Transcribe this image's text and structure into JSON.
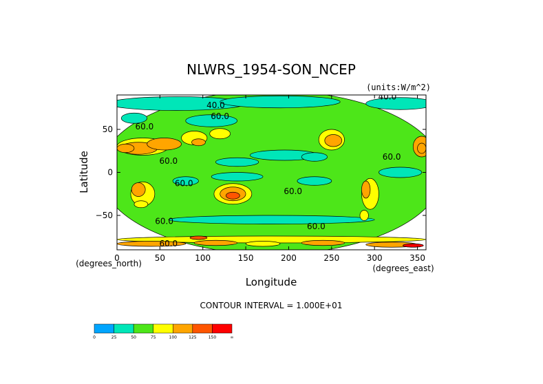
{
  "chart_data": {
    "type": "heatmap",
    "title": "NLWRS_1954-SON_NCEP",
    "units_label": "(units:W/m^2)",
    "xlabel": "Longitude",
    "ylabel": "Latitude",
    "x_unit_label": "(degrees_east)",
    "y_unit_label": "(degrees_north)",
    "xlim": [
      0,
      360
    ],
    "ylim": [
      -90,
      90
    ],
    "x_ticks": [
      "0",
      "50",
      "100",
      "150",
      "200",
      "250",
      "300",
      "350"
    ],
    "x_tick_values": [
      0,
      50,
      100,
      150,
      200,
      250,
      300,
      350
    ],
    "y_ticks": [
      "50",
      "0",
      "−50"
    ],
    "y_tick_values": [
      50,
      0,
      -50
    ],
    "contour_interval_text": "CONTOUR INTERVAL = 1.000E+01",
    "contour_labels": [
      {
        "text": "40.0",
        "lon": 115,
        "lat": 75
      },
      {
        "text": "60.0",
        "lon": 120,
        "lat": 62
      },
      {
        "text": "60.0",
        "lon": 32,
        "lat": 50
      },
      {
        "text": "60.0",
        "lon": 60,
        "lat": 10
      },
      {
        "text": "60.0",
        "lon": 78,
        "lat": -16
      },
      {
        "text": "60.0",
        "lon": 205,
        "lat": -25
      },
      {
        "text": "60.0",
        "lon": 320,
        "lat": 15
      },
      {
        "text": "60.0",
        "lon": 55,
        "lat": -60
      },
      {
        "text": "60.0",
        "lon": 232,
        "lat": -66
      },
      {
        "text": "60.0",
        "lon": 60,
        "lat": -86
      },
      {
        "text": "40.0",
        "lon": 315,
        "lat": 85
      }
    ],
    "colorbar": {
      "ticks": [
        "0",
        "25",
        "50",
        "75",
        "100",
        "125",
        "150",
        "∞"
      ],
      "colors": [
        "#00a5ff",
        "#00e6b8",
        "#4de619",
        "#ffff00",
        "#ffa500",
        "#ff5500",
        "#ff0000"
      ]
    },
    "regions": [
      {
        "lon": 180,
        "lat": 0,
        "rx": 200,
        "ry": 95,
        "value": 60
      },
      {
        "lon": 70,
        "lat": 80,
        "rx": 80,
        "ry": 8,
        "value": 45
      },
      {
        "lon": 190,
        "lat": 82,
        "rx": 70,
        "ry": 7,
        "value": 45
      },
      {
        "lon": 330,
        "lat": 80,
        "rx": 40,
        "ry": 7,
        "value": 40
      },
      {
        "lon": 110,
        "lat": 60,
        "rx": 30,
        "ry": 7,
        "value": 40
      },
      {
        "lon": 20,
        "lat": 63,
        "rx": 15,
        "ry": 6,
        "value": 45
      },
      {
        "lon": 195,
        "lat": 20,
        "rx": 40,
        "ry": 6,
        "value": 40
      },
      {
        "lon": 140,
        "lat": 12,
        "rx": 25,
        "ry": 5,
        "value": 45
      },
      {
        "lon": 230,
        "lat": 18,
        "rx": 15,
        "ry": 5,
        "value": 45
      },
      {
        "lon": 330,
        "lat": 0,
        "rx": 25,
        "ry": 6,
        "value": 40
      },
      {
        "lon": 80,
        "lat": -10,
        "rx": 15,
        "ry": 5,
        "value": 45
      },
      {
        "lon": 140,
        "lat": -5,
        "rx": 30,
        "ry": 5,
        "value": 45
      },
      {
        "lon": 230,
        "lat": -10,
        "rx": 20,
        "ry": 5,
        "value": 45
      },
      {
        "lon": 180,
        "lat": -55,
        "rx": 120,
        "ry": 5,
        "value": 45
      },
      {
        "lon": 180,
        "lat": -78,
        "rx": 180,
        "ry": 4,
        "value": 80
      },
      {
        "lon": 40,
        "lat": -83,
        "rx": 40,
        "ry": 3,
        "value": 110
      },
      {
        "lon": 115,
        "lat": -82,
        "rx": 25,
        "ry": 3,
        "value": 105
      },
      {
        "lon": 170,
        "lat": -83,
        "rx": 20,
        "ry": 3,
        "value": 85
      },
      {
        "lon": 240,
        "lat": -82,
        "rx": 25,
        "ry": 3,
        "value": 110
      },
      {
        "lon": 320,
        "lat": -84,
        "rx": 30,
        "ry": 3,
        "value": 120
      },
      {
        "lon": 345,
        "lat": -85,
        "rx": 12,
        "ry": 2,
        "value": 150
      },
      {
        "lon": 95,
        "lat": -76,
        "rx": 10,
        "ry": 2,
        "value": 125
      },
      {
        "lon": 30,
        "lat": 30,
        "rx": 30,
        "ry": 10,
        "value": 80
      },
      {
        "lon": 25,
        "lat": 28,
        "rx": 22,
        "ry": 7,
        "value": 110
      },
      {
        "lon": 10,
        "lat": 28,
        "rx": 10,
        "ry": 5,
        "value": 120
      },
      {
        "lon": 55,
        "lat": 33,
        "rx": 20,
        "ry": 7,
        "value": 100
      },
      {
        "lon": 90,
        "lat": 40,
        "rx": 15,
        "ry": 8,
        "value": 80
      },
      {
        "lon": 95,
        "lat": 35,
        "rx": 8,
        "ry": 4,
        "value": 105
      },
      {
        "lon": 120,
        "lat": 45,
        "rx": 12,
        "ry": 6,
        "value": 80
      },
      {
        "lon": 30,
        "lat": -25,
        "rx": 14,
        "ry": 14,
        "value": 80
      },
      {
        "lon": 25,
        "lat": -20,
        "rx": 8,
        "ry": 8,
        "value": 110
      },
      {
        "lon": 28,
        "lat": -37,
        "rx": 8,
        "ry": 4,
        "value": 90
      },
      {
        "lon": 135,
        "lat": -25,
        "rx": 22,
        "ry": 12,
        "value": 80
      },
      {
        "lon": 135,
        "lat": -25,
        "rx": 15,
        "ry": 8,
        "value": 100
      },
      {
        "lon": 135,
        "lat": -27,
        "rx": 8,
        "ry": 4,
        "value": 125
      },
      {
        "lon": 250,
        "lat": 38,
        "rx": 15,
        "ry": 12,
        "value": 80
      },
      {
        "lon": 252,
        "lat": 37,
        "rx": 10,
        "ry": 7,
        "value": 105
      },
      {
        "lon": 295,
        "lat": -25,
        "rx": 10,
        "ry": 18,
        "value": 80
      },
      {
        "lon": 290,
        "lat": -20,
        "rx": 5,
        "ry": 10,
        "value": 110
      },
      {
        "lon": 288,
        "lat": -50,
        "rx": 5,
        "ry": 6,
        "value": 80
      },
      {
        "lon": 355,
        "lat": 30,
        "rx": 10,
        "ry": 12,
        "value": 100
      },
      {
        "lon": 355,
        "lat": 28,
        "rx": 5,
        "ry": 6,
        "value": 120
      }
    ]
  }
}
